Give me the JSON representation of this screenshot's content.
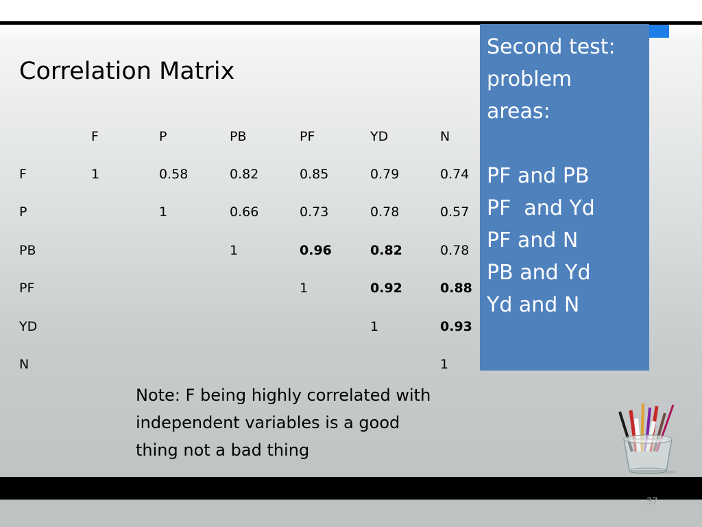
{
  "slide": {
    "title": "Correlation Matrix",
    "page_number": "37"
  },
  "matrix": {
    "columns": [
      "F",
      "P",
      "PB",
      "PF",
      "YD",
      "N"
    ],
    "rows": [
      {
        "label": "F",
        "cells": [
          {
            "v": "1"
          },
          {
            "v": "0.58"
          },
          {
            "v": "0.82"
          },
          {
            "v": "0.85"
          },
          {
            "v": "0.79"
          },
          {
            "v": "0.74"
          }
        ]
      },
      {
        "label": "P",
        "cells": [
          {
            "v": ""
          },
          {
            "v": "1"
          },
          {
            "v": "0.66"
          },
          {
            "v": "0.73"
          },
          {
            "v": "0.78"
          },
          {
            "v": "0.57"
          }
        ]
      },
      {
        "label": "PB",
        "cells": [
          {
            "v": ""
          },
          {
            "v": ""
          },
          {
            "v": "1"
          },
          {
            "v": "0.96",
            "bold": true
          },
          {
            "v": "0.82",
            "bold": true
          },
          {
            "v": "0.78"
          }
        ]
      },
      {
        "label": "PF",
        "cells": [
          {
            "v": ""
          },
          {
            "v": ""
          },
          {
            "v": ""
          },
          {
            "v": "1"
          },
          {
            "v": "0.92",
            "bold": true
          },
          {
            "v": "0.88",
            "bold": true
          }
        ]
      },
      {
        "label": "YD",
        "cells": [
          {
            "v": ""
          },
          {
            "v": ""
          },
          {
            "v": ""
          },
          {
            "v": ""
          },
          {
            "v": "1"
          },
          {
            "v": "0.93",
            "bold": true
          }
        ]
      },
      {
        "label": "N",
        "cells": [
          {
            "v": ""
          },
          {
            "v": ""
          },
          {
            "v": ""
          },
          {
            "v": ""
          },
          {
            "v": ""
          },
          {
            "v": "1"
          }
        ]
      }
    ]
  },
  "callout": {
    "lines": [
      "Second test:",
      "problem",
      "areas:",
      "",
      "PF and PB",
      "PF  and Yd",
      "PF and N",
      "PB and Yd",
      "Yd and N"
    ],
    "background_color": "#4f81bd"
  },
  "note": {
    "text": "Note: F being highly correlated with independent variables is a good thing not a bad thing"
  },
  "colors": {
    "accent": "#1e7fe8",
    "rule": "#000000"
  },
  "decoration": {
    "icon": "pencil-cup-icon"
  }
}
